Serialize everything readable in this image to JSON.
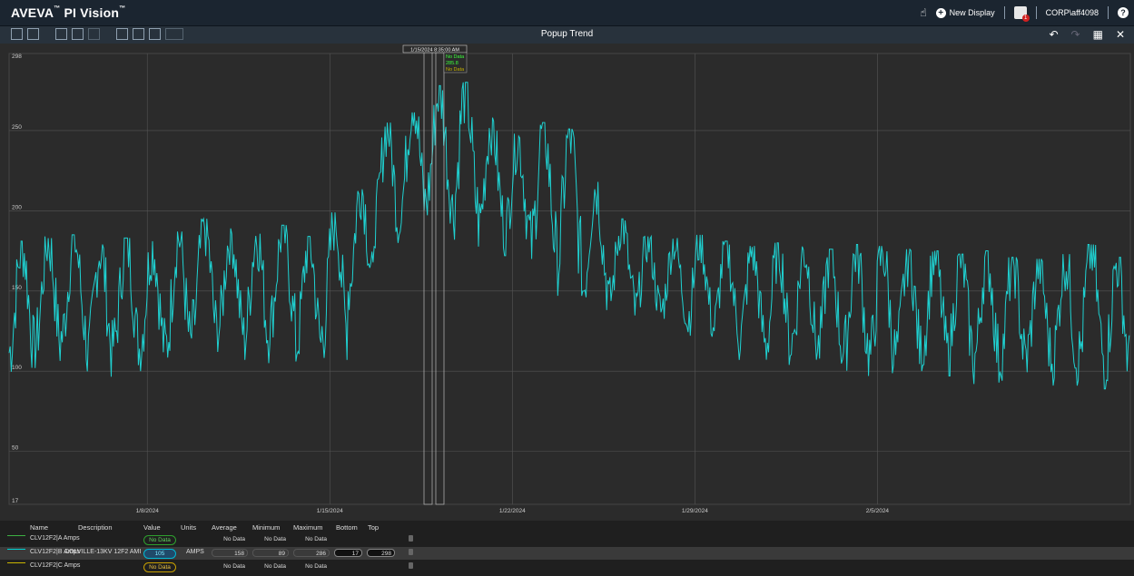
{
  "app": {
    "brand": "AVEVA",
    "product": "PI Vision",
    "tm": "™"
  },
  "topbar": {
    "new_display": "New Display",
    "user": "CORP\\aff4098",
    "alert_count": "1",
    "help": "?"
  },
  "toolbar": {
    "title": "Popup Trend"
  },
  "tooltip": {
    "time": "1/15/2024 8:35:00 AM",
    "values": [
      "No Data",
      "285.8",
      "No Data"
    ]
  },
  "legend": {
    "headers": [
      "Name",
      "Description",
      "Value",
      "Units",
      "Average",
      "Minimum",
      "Maximum",
      "Bottom",
      "Top"
    ],
    "rows": [
      {
        "name": "CLV12F2|A Amps",
        "description": "",
        "value": "No Data",
        "units": "",
        "average": "No Data",
        "minimum": "No Data",
        "maximum": "No Data",
        "bottom": "",
        "top": "",
        "color": "#3cb043"
      },
      {
        "name": "CLV12F2|B Amps",
        "description": "COLVILLE-13KV 12F2 AMI",
        "value": "105",
        "units": "AMPS",
        "average": "158",
        "minimum": "89",
        "maximum": "286",
        "bottom": "17",
        "top": "298",
        "color": "#00d4d4"
      },
      {
        "name": "CLV12F2|C Amps",
        "description": "",
        "value": "No Data",
        "units": "",
        "average": "No Data",
        "minimum": "No Data",
        "maximum": "No Data",
        "bottom": "",
        "top": "",
        "color": "#c8b400"
      }
    ]
  },
  "colors": {
    "trace": "#1fd1d1",
    "grid": "#555555",
    "bg": "#2b2b2b"
  },
  "chart_data": {
    "type": "line",
    "ylim": [
      17,
      298
    ],
    "y_ticks": [
      298,
      250,
      200,
      150,
      100,
      50,
      17
    ],
    "x_ticks": [
      "1/8/2024",
      "1/15/2024",
      "1/22/2024",
      "1/29/2024",
      "2/5/2024"
    ],
    "series": [
      {
        "name": "CLV12F2|B Amps",
        "points_per_day": 24,
        "day_min": [
          100,
          105,
          110,
          98,
          106,
          103,
          102,
          110,
          115,
          108,
          120,
          104,
          110,
          140,
          180,
          190,
          195,
          185,
          180,
          175,
          165,
          150,
          140,
          135,
          130,
          130,
          122,
          118,
          110,
          105,
          108,
          102,
          100,
          98,
          100,
          103,
          100,
          95,
          97,
          98,
          94,
          96,
          92
        ],
        "day_max": [
          178,
          181,
          182,
          176,
          180,
          178,
          184,
          192,
          186,
          185,
          188,
          181,
          196,
          215,
          252,
          270,
          275,
          277,
          255,
          245,
          252,
          248,
          215,
          192,
          181,
          180,
          182,
          178,
          175,
          177,
          175,
          173,
          176,
          175,
          173,
          172,
          170,
          172,
          168,
          167,
          170,
          176,
          168
        ]
      }
    ]
  }
}
